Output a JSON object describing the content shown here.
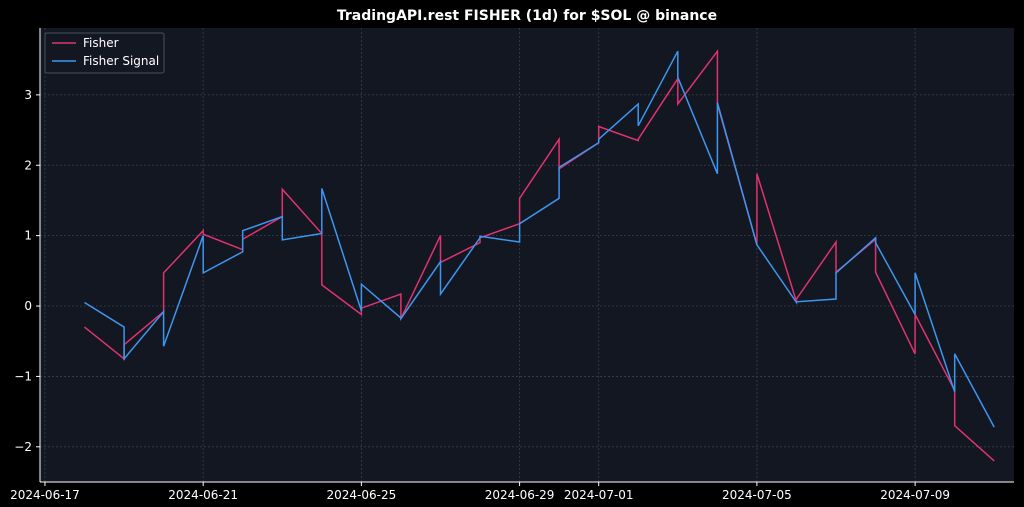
{
  "chart_data": {
    "type": "line",
    "title": "TradingAPI.rest FISHER (1d) for $SOL @ binance",
    "xlabel": "",
    "ylabel": "",
    "x": [
      "2024-06-18",
      "2024-06-19",
      "2024-06-20",
      "2024-06-21",
      "2024-06-22",
      "2024-06-23",
      "2024-06-24",
      "2024-06-25",
      "2024-06-26",
      "2024-06-27",
      "2024-06-28",
      "2024-06-29",
      "2024-06-30",
      "2024-07-01",
      "2024-07-02",
      "2024-07-03",
      "2024-07-04",
      "2024-07-05",
      "2024-07-06",
      "2024-07-07",
      "2024-07-08",
      "2024-07-09",
      "2024-07-10"
    ],
    "series": [
      {
        "name": "Fisher",
        "color": "#e0336e",
        "values": [
          [
            -0.3,
            -0.75
          ],
          [
            -0.55,
            -0.08
          ],
          [
            0.47,
            1.07
          ],
          [
            1.02,
            0.8
          ],
          [
            0.95,
            1.27
          ],
          [
            1.66,
            1.03
          ],
          [
            0.3,
            -0.12
          ],
          [
            -0.03,
            0.17
          ],
          [
            -0.18,
            1.0
          ],
          [
            0.62,
            0.9
          ],
          [
            0.97,
            1.17
          ],
          [
            1.53,
            2.37
          ],
          [
            1.95,
            2.32
          ],
          [
            2.55,
            2.35
          ],
          [
            2.37,
            3.23
          ],
          [
            2.87,
            3.62
          ],
          [
            2.87,
            0.87
          ],
          [
            1.88,
            0.06
          ],
          [
            0.1,
            0.91
          ],
          [
            0.48,
            0.95
          ],
          [
            0.48,
            -0.68
          ],
          [
            -0.12,
            -1.2
          ],
          [
            -1.7,
            -2.2
          ]
        ]
      },
      {
        "name": "Fisher Signal",
        "color": "#3d96f0",
        "values": [
          [
            0.05,
            -0.3
          ],
          [
            -0.75,
            -0.08
          ],
          [
            -0.57,
            1.0
          ],
          [
            0.47,
            0.77
          ],
          [
            1.07,
            1.27
          ],
          [
            0.94,
            1.03
          ],
          [
            1.67,
            -0.07
          ],
          [
            0.31,
            -0.17
          ],
          [
            -0.18,
            0.63
          ],
          [
            0.17,
            0.97
          ],
          [
            0.99,
            0.91
          ],
          [
            1.17,
            1.53
          ],
          [
            1.97,
            2.32
          ],
          [
            2.37,
            2.87
          ],
          [
            2.56,
            3.62
          ],
          [
            3.25,
            1.88
          ],
          [
            2.89,
            0.87
          ],
          [
            0.87,
            0.05
          ],
          [
            0.06,
            0.1
          ],
          [
            0.47,
            0.97
          ],
          [
            0.9,
            -0.12
          ],
          [
            0.47,
            -1.22
          ],
          [
            -0.68,
            -1.72
          ]
        ]
      }
    ],
    "xticks": [
      "2024-06-17",
      "2024-06-21",
      "2024-06-25",
      "2024-06-29",
      "2024-07-01",
      "2024-07-05",
      "2024-07-09"
    ],
    "yticks": [
      -2,
      -1,
      0,
      1,
      2,
      3
    ],
    "xlim": [
      "2024-06-16T21:00",
      "2024-07-11T12:00"
    ],
    "ylim": [
      -2.5,
      3.95
    ],
    "grid": true,
    "legend": "top-left",
    "background": "#131722",
    "page_background": "#000000"
  }
}
